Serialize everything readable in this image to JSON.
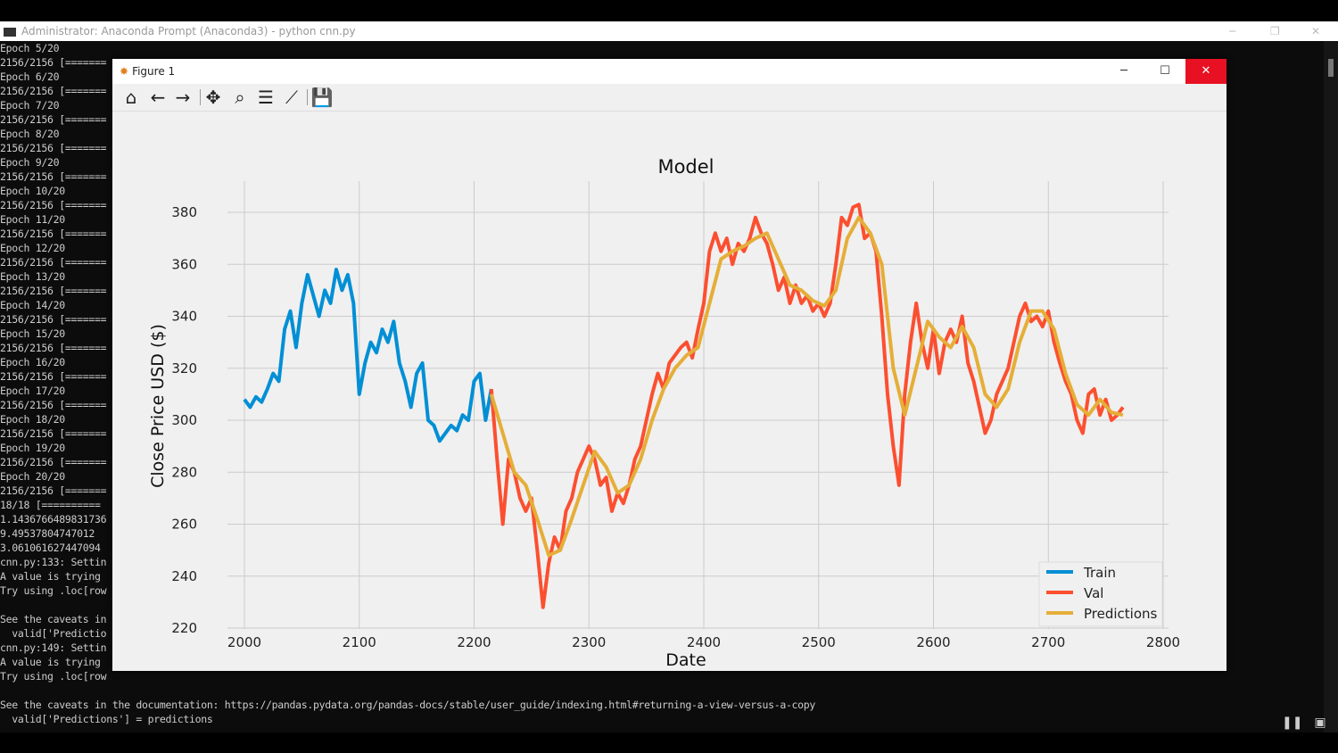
{
  "console": {
    "title": "Administrator: Anaconda Prompt (Anaconda3) - python  cnn.py",
    "lines": [
      "Epoch 5/20",
      "2156/2156 [=======",
      "Epoch 6/20",
      "2156/2156 [=======",
      "Epoch 7/20",
      "2156/2156 [=======",
      "Epoch 8/20",
      "2156/2156 [=======",
      "Epoch 9/20",
      "2156/2156 [=======",
      "Epoch 10/20",
      "2156/2156 [=======",
      "Epoch 11/20",
      "2156/2156 [=======",
      "Epoch 12/20",
      "2156/2156 [=======",
      "Epoch 13/20",
      "2156/2156 [=======",
      "Epoch 14/20",
      "2156/2156 [=======",
      "Epoch 15/20",
      "2156/2156 [=======",
      "Epoch 16/20",
      "2156/2156 [=======",
      "Epoch 17/20",
      "2156/2156 [=======",
      "Epoch 18/20",
      "2156/2156 [=======",
      "Epoch 19/20",
      "2156/2156 [=======",
      "Epoch 20/20",
      "2156/2156 [=======",
      "18/18 [==========",
      "1.1436766489831736",
      "9.49537804747012",
      "3.061061627447094",
      "cnn.py:133: Settin",
      "A value is trying",
      "Try using .loc[row",
      "",
      "See the caveats in",
      "  valid['Predictio",
      "cnn.py:149: Settin",
      "A value is trying",
      "Try using .loc[row",
      "",
      "See the caveats in the documentation: https://pandas.pydata.org/pandas-docs/stable/user_guide/indexing.html#returning-a-view-versus-a-copy",
      "  valid['Predictions'] = predictions"
    ]
  },
  "figure": {
    "title": "Figure 1"
  },
  "chart_data": {
    "type": "line",
    "title": "Model",
    "xlabel": "Date",
    "ylabel": "Close Price USD ($)",
    "xlim": [
      1965,
      2805
    ],
    "ylim": [
      217,
      390
    ],
    "xticks": [
      2000,
      2100,
      2200,
      2300,
      2400,
      2500,
      2600,
      2700,
      2800
    ],
    "yticks": [
      220,
      240,
      260,
      280,
      300,
      320,
      340,
      360,
      380
    ],
    "grid": true,
    "legend_position": "bottom-right",
    "series": [
      {
        "name": "Train",
        "color": "#008fd5",
        "x_start": 2000,
        "x_step": 5,
        "values": [
          308,
          305,
          309,
          307,
          312,
          318,
          315,
          335,
          342,
          328,
          345,
          356,
          348,
          340,
          350,
          345,
          358,
          350,
          356,
          345,
          310,
          322,
          330,
          326,
          335,
          330,
          338,
          322,
          315,
          305,
          318,
          322,
          300,
          298,
          292,
          295,
          298,
          296,
          302,
          300,
          315,
          318,
          300,
          312
        ]
      },
      {
        "name": "Val",
        "color": "#fc4f30",
        "x_start": 2215,
        "x_step": 5,
        "values": [
          312,
          285,
          260,
          285,
          280,
          270,
          265,
          270,
          250,
          228,
          245,
          255,
          250,
          265,
          270,
          280,
          285,
          290,
          285,
          275,
          278,
          265,
          272,
          268,
          275,
          285,
          290,
          300,
          310,
          318,
          312,
          322,
          325,
          328,
          330,
          324,
          335,
          345,
          365,
          372,
          365,
          370,
          360,
          368,
          365,
          370,
          378,
          372,
          368,
          360,
          350,
          355,
          345,
          352,
          345,
          348,
          342,
          345,
          340,
          345,
          360,
          378,
          375,
          382,
          383,
          370,
          372,
          365,
          340,
          310,
          290,
          275,
          310,
          330,
          345,
          330,
          320,
          335,
          318,
          330,
          335,
          330,
          340,
          322,
          315,
          305,
          295,
          300,
          310,
          315,
          320,
          330,
          340,
          345,
          338,
          340,
          336,
          342,
          330,
          322,
          315,
          310,
          300,
          295,
          310,
          312,
          302,
          308,
          300,
          302,
          305
        ]
      },
      {
        "name": "Predictions",
        "color": "#e5ae38",
        "x_start": 2215,
        "x_step": 10,
        "values": [
          310,
          295,
          280,
          275,
          262,
          248,
          250,
          262,
          275,
          288,
          282,
          272,
          275,
          285,
          300,
          312,
          320,
          325,
          328,
          345,
          362,
          365,
          367,
          370,
          372,
          362,
          352,
          350,
          346,
          344,
          350,
          370,
          378,
          372,
          360,
          320,
          302,
          320,
          338,
          332,
          328,
          336,
          328,
          310,
          305,
          312,
          330,
          342,
          342,
          335,
          318,
          306,
          302,
          308,
          303,
          302
        ]
      }
    ]
  }
}
